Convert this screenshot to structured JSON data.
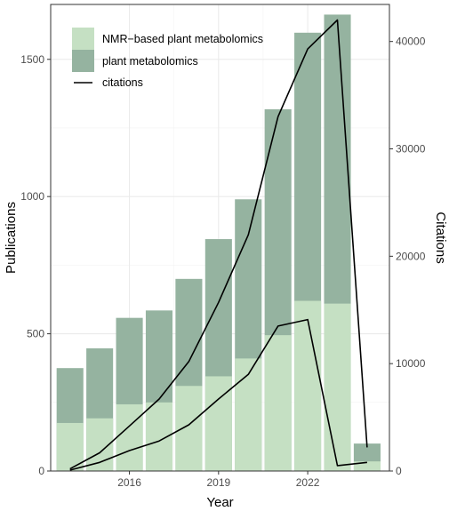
{
  "chart_data": {
    "type": "bar",
    "x": [
      2014,
      2015,
      2016,
      2017,
      2018,
      2019,
      2020,
      2021,
      2022,
      2023,
      2024
    ],
    "series": [
      {
        "name": "NMR−based plant metabolomics",
        "values": [
          175,
          192,
          243,
          250,
          310,
          345,
          410,
          495,
          620,
          610,
          35
        ],
        "color": "#c5e0c3"
      },
      {
        "name": "plant metabolomics",
        "values": [
          375,
          447,
          558,
          585,
          700,
          845,
          990,
          1318,
          1597,
          1663,
          100
        ],
        "color": "#95b3a0"
      }
    ],
    "citations_total": [
      200,
      1700,
      4200,
      6700,
      10200,
      15700,
      22000,
      33000,
      39300,
      42000,
      2200
    ],
    "citations_nmr": [
      80,
      800,
      1900,
      2800,
      4300,
      6700,
      9000,
      13500,
      14100,
      500,
      800
    ],
    "line_series_name": "citations",
    "xlabel": "Year",
    "ylabel": "Publications",
    "y2label": "Citations",
    "xticks": [
      2016,
      2019,
      2022
    ],
    "xlim": [
      2013.35,
      2024.75
    ],
    "ylim": [
      0,
      1700
    ],
    "yticks": [
      0,
      500,
      1000,
      1500
    ],
    "y2lim": [
      0,
      43450
    ],
    "y2ticks": [
      0,
      10000,
      20000,
      30000,
      40000
    ],
    "grid": true,
    "legend_position": "top-left"
  }
}
